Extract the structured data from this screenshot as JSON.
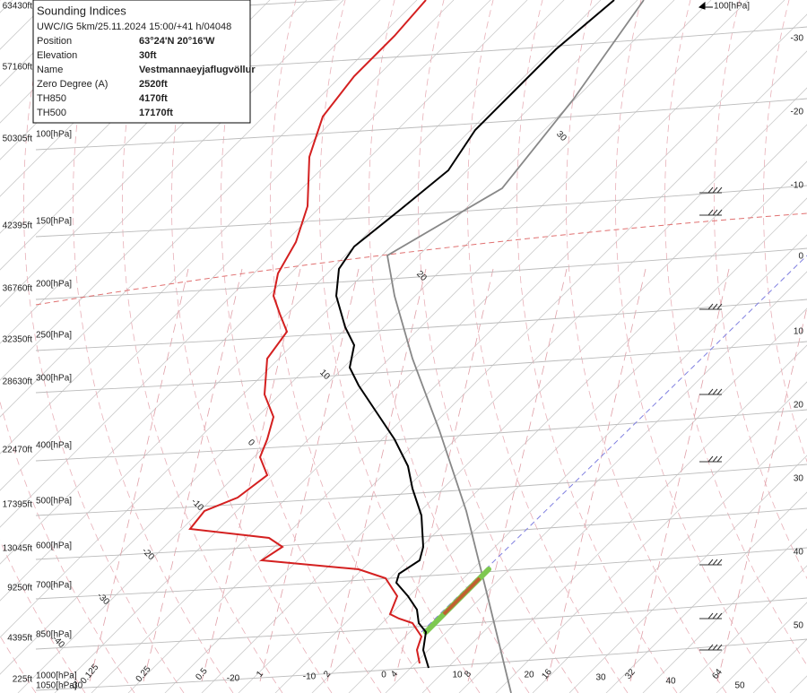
{
  "info": {
    "title": "Sounding Indices",
    "subtitle": "UWC/IG 5km/25.11.2024 15:00/+41 h/04048",
    "rows": [
      [
        "Position",
        "63°24'N 20°16'W"
      ],
      [
        "Elevation",
        "30ft"
      ],
      [
        "Name",
        "Vestmannaeyjaflugvöllur"
      ],
      [
        "Zero Degree (A)",
        "2520ft"
      ],
      [
        "TH850",
        "4170ft"
      ],
      [
        "TH500",
        "17170ft"
      ]
    ]
  },
  "heights": [
    "63430ft",
    "57160ft",
    "50305ft",
    "42395ft",
    "36760ft",
    "32350ft",
    "28630ft",
    "22470ft",
    "17395ft",
    "13045ft",
    "9250ft",
    "4395ft",
    "225ft"
  ],
  "pressures": [
    "100[hPa]",
    "150[hPa]",
    "200[hPa]",
    "250[hPa]",
    "300[hPa]",
    "400[hPa]",
    "500[hPa]",
    "600[hPa]",
    "700[hPa]",
    "850[hPa]",
    "1000[hPa]",
    "1050[hPa]"
  ],
  "top_right_pressure": "100[hPa]",
  "right_temps": [
    "-30",
    "-20",
    "-10",
    "0",
    "10",
    "20",
    "30",
    "40",
    "50"
  ],
  "mixing_ratios": [
    "0.125",
    "0.25",
    "0.5",
    "1",
    "2",
    "4",
    "8",
    "16",
    "32",
    "64"
  ],
  "bottom_temps": [
    "-30",
    "-20",
    "-10",
    "0",
    "10",
    "20",
    "30",
    "40",
    "50"
  ],
  "isotherm_labels": [
    "30",
    "20",
    "10",
    "0",
    "-10",
    "-20",
    "-30",
    "-40"
  ]
}
